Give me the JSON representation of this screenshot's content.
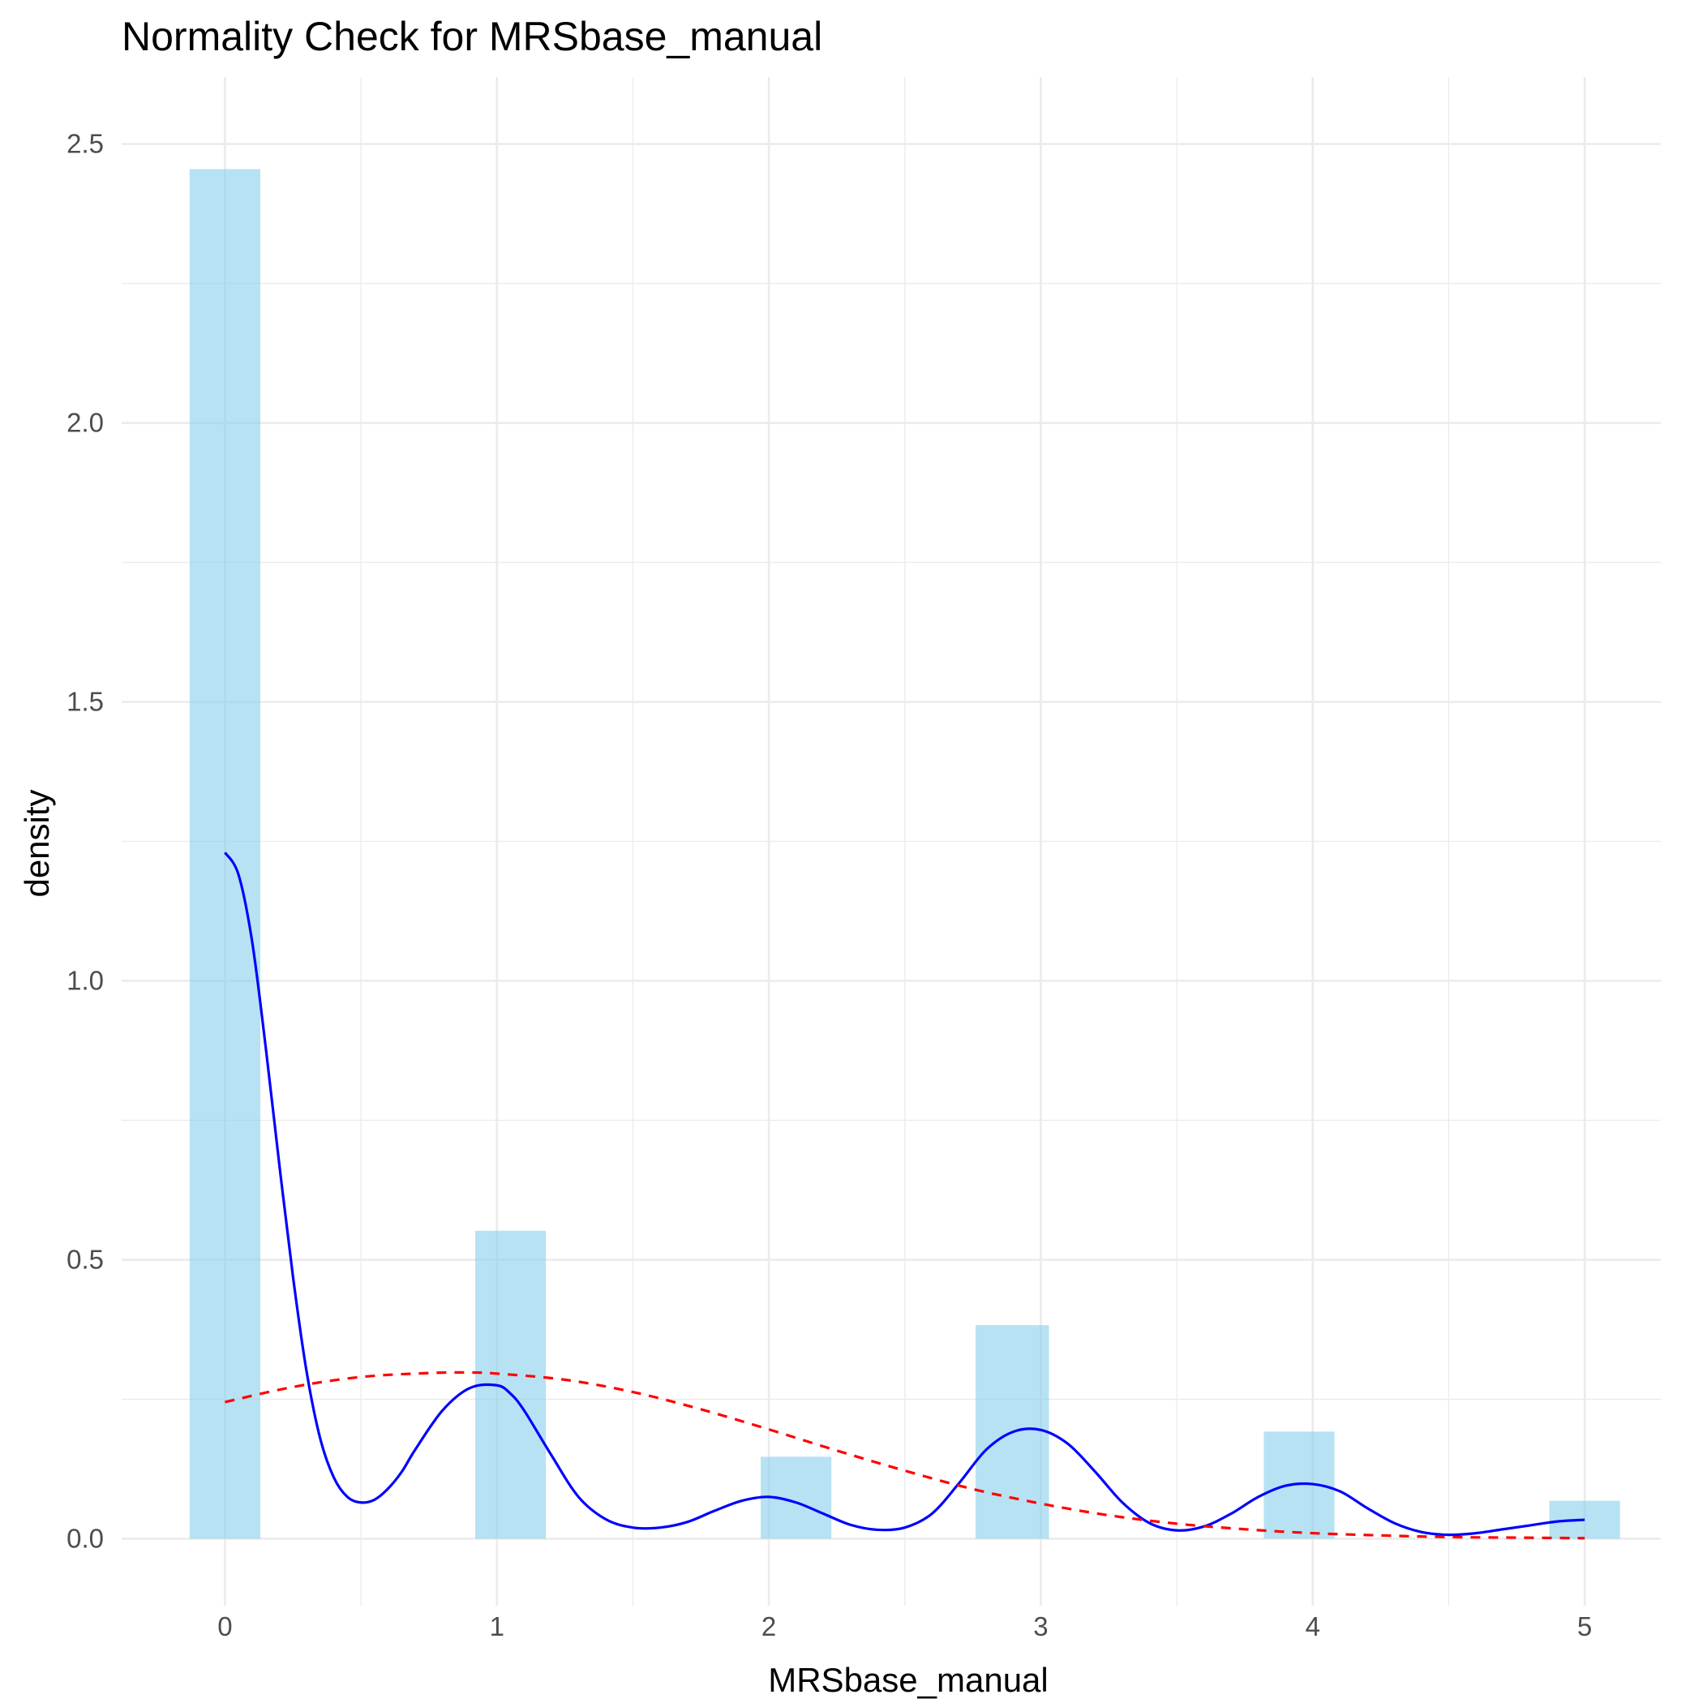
{
  "chart_data": {
    "type": "histogram",
    "title": "Normality Check for MRSbase_manual",
    "xlabel": "MRSbase_manual",
    "ylabel": "density",
    "xlim": [
      -0.38,
      5.28
    ],
    "ylim": [
      -0.12,
      2.62
    ],
    "x_ticks": [
      0,
      1,
      2,
      3,
      4,
      5
    ],
    "x_tick_labels": [
      "0",
      "1",
      "2",
      "3",
      "4",
      "5"
    ],
    "y_ticks": [
      0,
      0.5,
      1,
      1.5,
      2,
      2.5
    ],
    "y_tick_labels": [
      "0.0",
      "0.5",
      "1.0",
      "1.5",
      "2.0",
      "2.5"
    ],
    "grid": true,
    "histogram": {
      "fill_color": "#87ceeb",
      "bins": [
        {
          "x_min": -0.13,
          "x_max": 0.13,
          "density": 2.455
        },
        {
          "x_min": 0.92,
          "x_max": 1.18,
          "density": 0.552
        },
        {
          "x_min": 1.97,
          "x_max": 2.23,
          "density": 0.147
        },
        {
          "x_min": 2.76,
          "x_max": 3.03,
          "density": 0.383
        },
        {
          "x_min": 3.82,
          "x_max": 4.08,
          "density": 0.192
        },
        {
          "x_min": 4.87,
          "x_max": 5.13,
          "density": 0.068
        }
      ]
    },
    "series": [
      {
        "style": "solid",
        "color": "#0000ff",
        "x": [
          0,
          0.05,
          0.1,
          0.15,
          0.2,
          0.25,
          0.3,
          0.35,
          0.4,
          0.45,
          0.5,
          0.55,
          0.6,
          0.65,
          0.7,
          0.8,
          0.9,
          1.0,
          1.05,
          1.1,
          1.2,
          1.3,
          1.4,
          1.5,
          1.6,
          1.7,
          1.8,
          1.9,
          2.0,
          2.1,
          2.2,
          2.3,
          2.4,
          2.5,
          2.6,
          2.7,
          2.8,
          2.9,
          3.0,
          3.1,
          3.2,
          3.3,
          3.4,
          3.5,
          3.6,
          3.7,
          3.8,
          3.9,
          4.0,
          4.1,
          4.2,
          4.3,
          4.4,
          4.5,
          4.6,
          4.7,
          4.8,
          4.9,
          5.0
        ],
        "y": [
          1.23,
          1.19,
          1.07,
          0.88,
          0.67,
          0.47,
          0.3,
          0.18,
          0.11,
          0.075,
          0.065,
          0.07,
          0.09,
          0.12,
          0.16,
          0.23,
          0.27,
          0.275,
          0.26,
          0.23,
          0.15,
          0.075,
          0.035,
          0.02,
          0.02,
          0.03,
          0.05,
          0.068,
          0.075,
          0.065,
          0.045,
          0.025,
          0.016,
          0.02,
          0.045,
          0.1,
          0.16,
          0.192,
          0.195,
          0.17,
          0.12,
          0.065,
          0.028,
          0.015,
          0.022,
          0.045,
          0.075,
          0.095,
          0.098,
          0.085,
          0.055,
          0.028,
          0.012,
          0.007,
          0.01,
          0.017,
          0.024,
          0.031,
          0.034
        ]
      },
      {
        "style": "dashed",
        "color": "#ff0000",
        "x": [
          0,
          0.25,
          0.5,
          0.75,
          0.9,
          1.0,
          1.25,
          1.5,
          1.75,
          2.0,
          2.25,
          2.5,
          2.75,
          3.0,
          3.25,
          3.5,
          3.75,
          4.0,
          4.25,
          4.5,
          4.75,
          5.0
        ],
        "y": [
          0.245,
          0.272,
          0.29,
          0.297,
          0.298,
          0.296,
          0.285,
          0.263,
          0.232,
          0.196,
          0.158,
          0.122,
          0.089,
          0.063,
          0.042,
          0.027,
          0.017,
          0.01,
          0.006,
          0.003,
          0.002,
          0.001
        ]
      }
    ]
  }
}
